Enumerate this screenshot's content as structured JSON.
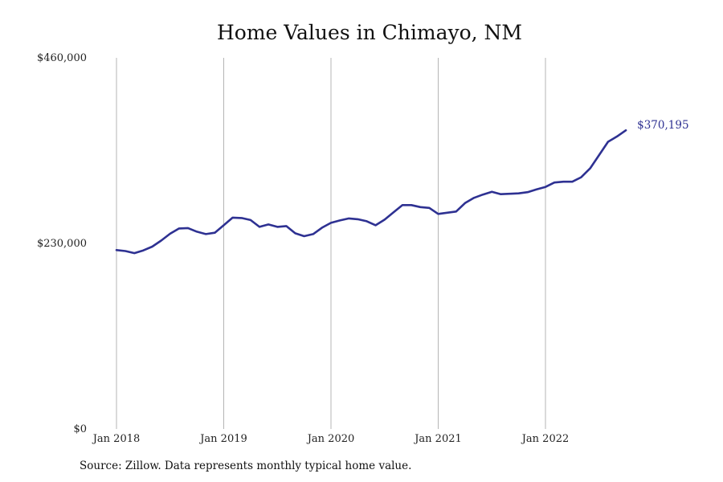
{
  "chart_data": {
    "type": "line",
    "title": "Home Values in Chimayo, NM",
    "xlabel": "",
    "ylabel": "",
    "ylim": [
      0,
      460000
    ],
    "yticks": [
      {
        "value": 0,
        "label": "$0"
      },
      {
        "value": 230000,
        "label": "$230,000"
      },
      {
        "value": 460000,
        "label": "$460,000"
      }
    ],
    "xticks": [
      {
        "index": 0,
        "label": "Jan 2018"
      },
      {
        "index": 12,
        "label": "Jan 2019"
      },
      {
        "index": 24,
        "label": "Jan 2020"
      },
      {
        "index": 36,
        "label": "Jan 2021"
      },
      {
        "index": 48,
        "label": "Jan 2022"
      }
    ],
    "grid": {
      "vertical": true,
      "horizontal": false
    },
    "legend": "none",
    "line_color": "#2e3192",
    "series": [
      {
        "values": [
          221700,
          220500,
          218000,
          221300,
          226000,
          233500,
          242000,
          248500,
          249000,
          244500,
          241500,
          243200,
          252500,
          262000,
          261500,
          259000,
          250500,
          253500,
          250500,
          251500,
          242500,
          239000,
          241500,
          249500,
          255500,
          258500,
          261000,
          260000,
          257500,
          252500,
          259500,
          268500,
          277500,
          277500,
          275000,
          274000,
          266500,
          268000,
          269500,
          280000,
          286500,
          290500,
          294000,
          291000,
          291500,
          292000,
          293500,
          297000,
          300000,
          305500,
          306500,
          306500,
          312000,
          323000,
          339500,
          356000,
          362500,
          370195
        ]
      }
    ],
    "end_label": "$370,195"
  },
  "source_note": "Source: Zillow. Data represents monthly typical home value."
}
